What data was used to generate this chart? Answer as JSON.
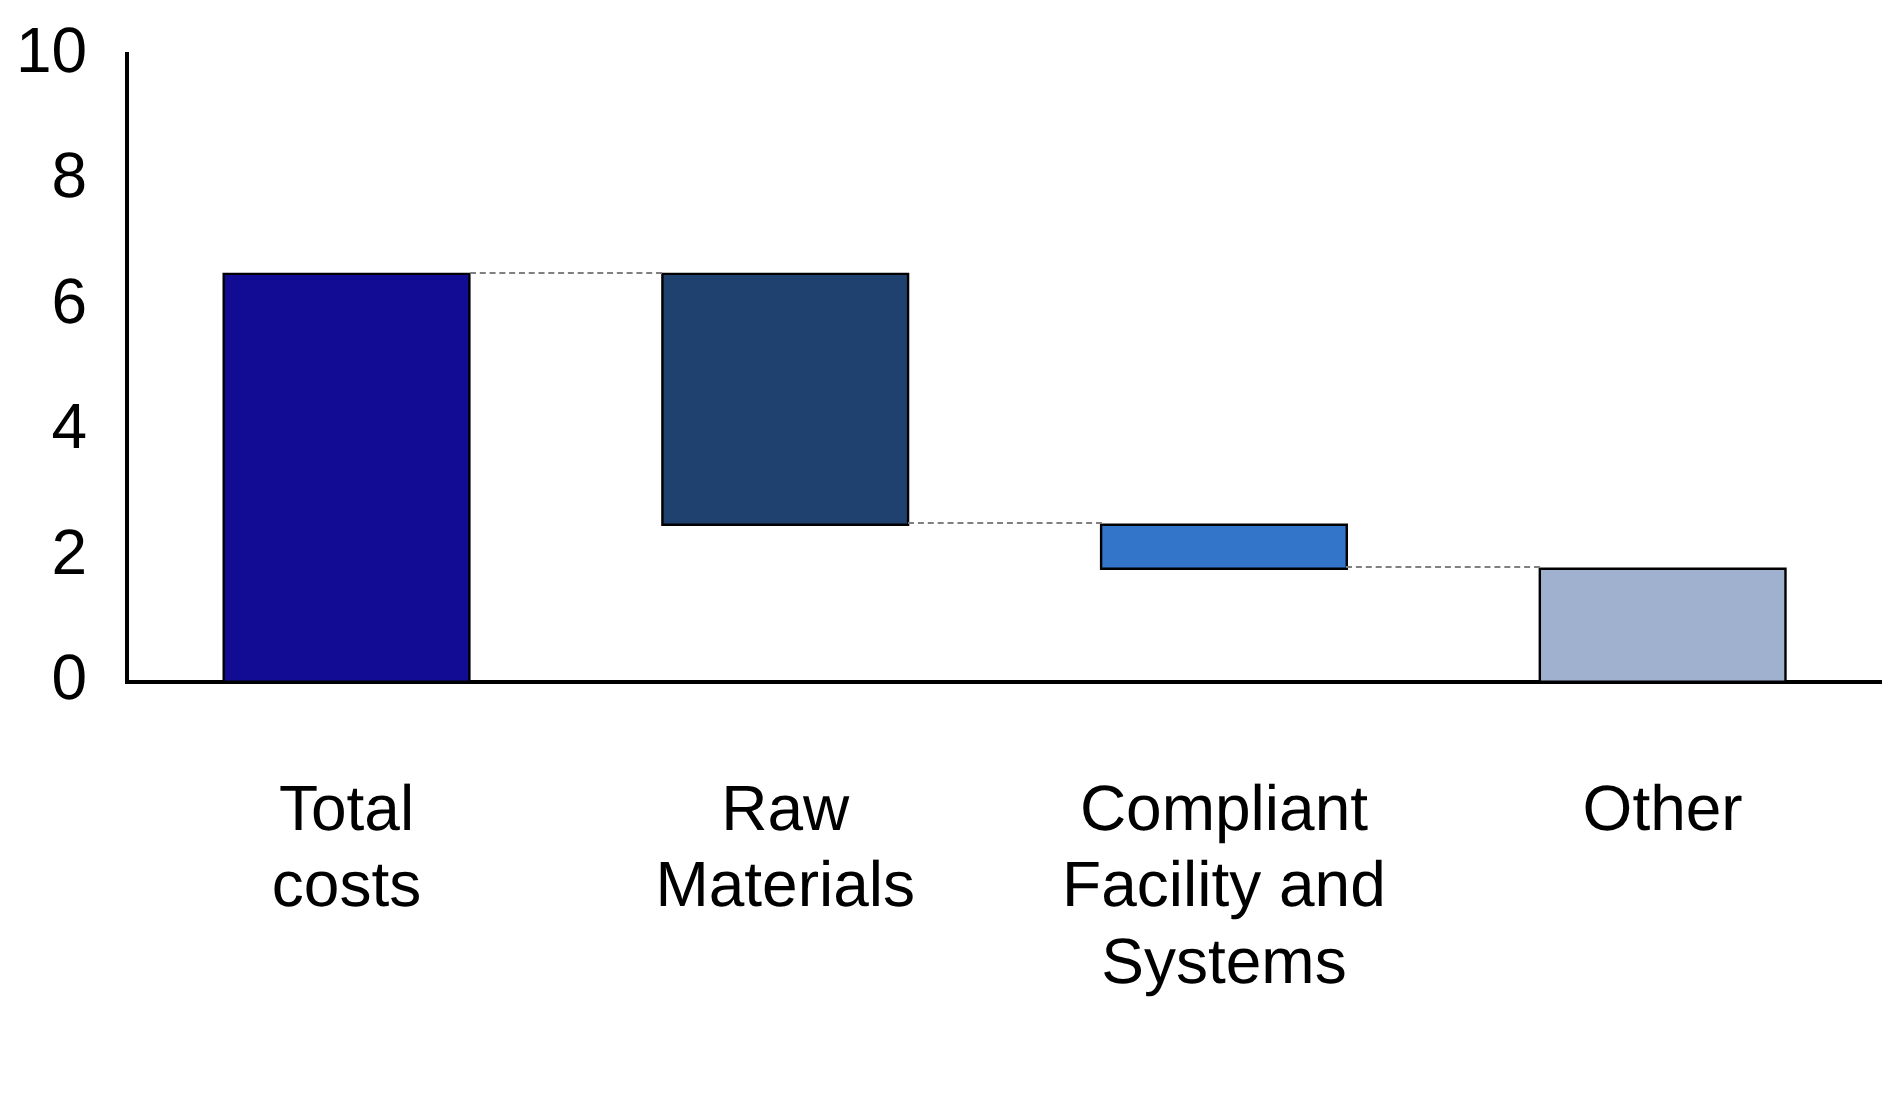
{
  "chart_data": {
    "type": "bar",
    "categories": [
      "Total costs",
      "Raw Materials",
      "Compliant Facility and Systems",
      "Other"
    ],
    "values": [
      6.5,
      4.0,
      0.7,
      1.8
    ],
    "base": [
      0,
      2.5,
      1.8,
      0
    ],
    "colors": [
      "#120c94",
      "#1f416f",
      "#3375c9",
      "#9fb1cf"
    ],
    "ylim": [
      0,
      10
    ],
    "yticks": [
      0,
      2,
      4,
      6,
      8,
      10
    ],
    "grid": false,
    "legend": false
  }
}
